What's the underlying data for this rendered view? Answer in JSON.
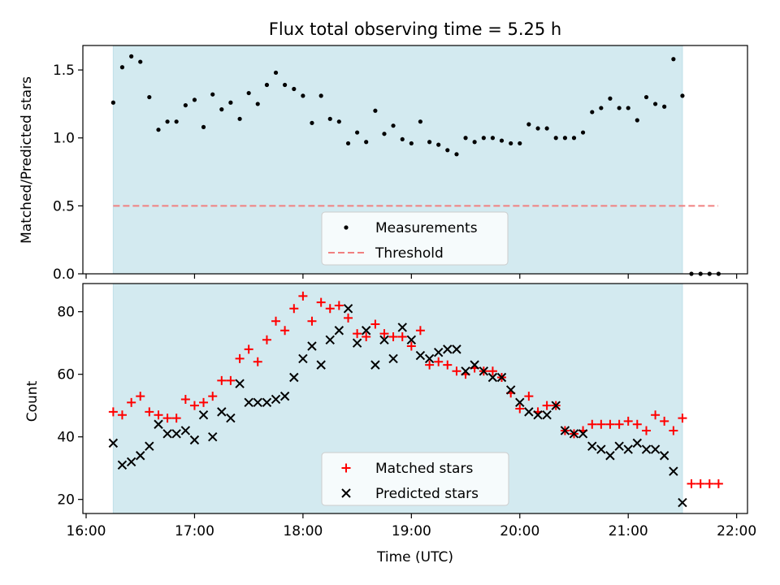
{
  "title": "Flux total observing time = 5.25 h",
  "colors": {
    "observing_span": "#d3eaf0",
    "measurements": "#000000",
    "threshold": "#f08080",
    "matched": "#ff0000",
    "predicted": "#000000"
  },
  "x_axis": {
    "label": "Time (UTC)",
    "range_hours": [
      15.97,
      22.1
    ],
    "ticks": [
      {
        "value": 16,
        "label": "16:00"
      },
      {
        "value": 17,
        "label": "17:00"
      },
      {
        "value": 18,
        "label": "18:00"
      },
      {
        "value": 19,
        "label": "19:00"
      },
      {
        "value": 20,
        "label": "20:00"
      },
      {
        "value": 21,
        "label": "21:00"
      },
      {
        "value": 22,
        "label": "22:00"
      }
    ]
  },
  "observing_span_hours": [
    16.25,
    21.5
  ],
  "chart_data": [
    {
      "type": "scatter",
      "ylabel": "Matched/Predicted stars",
      "ylim": [
        0,
        1.68
      ],
      "yticks": [
        "0.0",
        "0.5",
        "1.0",
        "1.5"
      ],
      "legend": [
        "Measurements",
        "Threshold"
      ],
      "legend_position": "lower-center",
      "threshold": {
        "name": "Threshold",
        "y": 0.5,
        "x": [
          16.25,
          21.83
        ]
      },
      "series": [
        {
          "name": "Measurements",
          "x": [
            16.25,
            16.333,
            16.417,
            16.5,
            16.583,
            16.667,
            16.75,
            16.833,
            16.917,
            17.0,
            17.083,
            17.167,
            17.25,
            17.333,
            17.417,
            17.5,
            17.583,
            17.667,
            17.75,
            17.833,
            17.917,
            18.0,
            18.083,
            18.167,
            18.25,
            18.333,
            18.417,
            18.5,
            18.583,
            18.667,
            18.75,
            18.833,
            18.917,
            19.0,
            19.083,
            19.167,
            19.25,
            19.333,
            19.417,
            19.5,
            19.583,
            19.667,
            19.75,
            19.833,
            19.917,
            20.0,
            20.083,
            20.167,
            20.25,
            20.333,
            20.417,
            20.5,
            20.583,
            20.667,
            20.75,
            20.833,
            20.917,
            21.0,
            21.083,
            21.167,
            21.25,
            21.333,
            21.417,
            21.5,
            21.583,
            21.667,
            21.75,
            21.833
          ],
          "y": [
            1.26,
            1.52,
            1.6,
            1.56,
            1.3,
            1.06,
            1.12,
            1.12,
            1.24,
            1.28,
            1.08,
            1.32,
            1.21,
            1.26,
            1.14,
            1.33,
            1.25,
            1.39,
            1.48,
            1.39,
            1.36,
            1.31,
            1.11,
            1.31,
            1.14,
            1.12,
            0.96,
            1.04,
            0.97,
            1.2,
            1.03,
            1.09,
            0.99,
            0.96,
            1.12,
            0.97,
            0.95,
            0.91,
            0.88,
            1.0,
            0.97,
            1.0,
            1.0,
            0.98,
            0.96,
            0.96,
            1.1,
            1.07,
            1.07,
            1.0,
            1.0,
            1.0,
            1.04,
            1.19,
            1.22,
            1.29,
            1.22,
            1.22,
            1.13,
            1.3,
            1.25,
            1.23,
            1.58,
            1.31,
            0.0,
            0.0,
            0.0,
            0.0
          ]
        }
      ]
    },
    {
      "type": "scatter",
      "ylabel": "Count",
      "ylim": [
        15.5,
        89
      ],
      "yticks": [
        "20",
        "40",
        "60",
        "80"
      ],
      "legend": [
        "Matched stars",
        "Predicted stars"
      ],
      "legend_position": "lower-center",
      "x": [
        16.25,
        16.333,
        16.417,
        16.5,
        16.583,
        16.667,
        16.75,
        16.833,
        16.917,
        17.0,
        17.083,
        17.167,
        17.25,
        17.333,
        17.417,
        17.5,
        17.583,
        17.667,
        17.75,
        17.833,
        17.917,
        18.0,
        18.083,
        18.167,
        18.25,
        18.333,
        18.417,
        18.5,
        18.583,
        18.667,
        18.75,
        18.833,
        18.917,
        19.0,
        19.083,
        19.167,
        19.25,
        19.333,
        19.417,
        19.5,
        19.583,
        19.667,
        19.75,
        19.833,
        19.917,
        20.0,
        20.083,
        20.167,
        20.25,
        20.333,
        20.417,
        20.5,
        20.583,
        20.667,
        20.75,
        20.833,
        20.917,
        21.0,
        21.083,
        21.167,
        21.25,
        21.333,
        21.417,
        21.5,
        21.583,
        21.667,
        21.75,
        21.833
      ],
      "series": [
        {
          "name": "Matched stars",
          "values": [
            48,
            47,
            51,
            53,
            48,
            47,
            46,
            46,
            52,
            50,
            51,
            53,
            58,
            58,
            65,
            68,
            64,
            71,
            77,
            74,
            81,
            85,
            77,
            83,
            81,
            82,
            78,
            73,
            72,
            76,
            73,
            72,
            72,
            69,
            74,
            63,
            64,
            63,
            61,
            60,
            62,
            61,
            61,
            59,
            54,
            49,
            53,
            48,
            50,
            50,
            42,
            41,
            42,
            44,
            44,
            44,
            44,
            45,
            44,
            42,
            47,
            45,
            42,
            46,
            25,
            25,
            25,
            25
          ]
        },
        {
          "name": "Predicted stars",
          "values": [
            38,
            31,
            32,
            34,
            37,
            44,
            41,
            41,
            42,
            39,
            47,
            40,
            48,
            46,
            57,
            51,
            51,
            51,
            52,
            53,
            59,
            65,
            69,
            63,
            71,
            74,
            81,
            70,
            74,
            63,
            71,
            65,
            75,
            71,
            66,
            65,
            67,
            68,
            68,
            61,
            63,
            61,
            59,
            59,
            55,
            51,
            48,
            47,
            47,
            50,
            42,
            41,
            41,
            37,
            36,
            34,
            37,
            36,
            38,
            36,
            36,
            34,
            29,
            19,
            null,
            null,
            null,
            null
          ]
        }
      ]
    }
  ]
}
